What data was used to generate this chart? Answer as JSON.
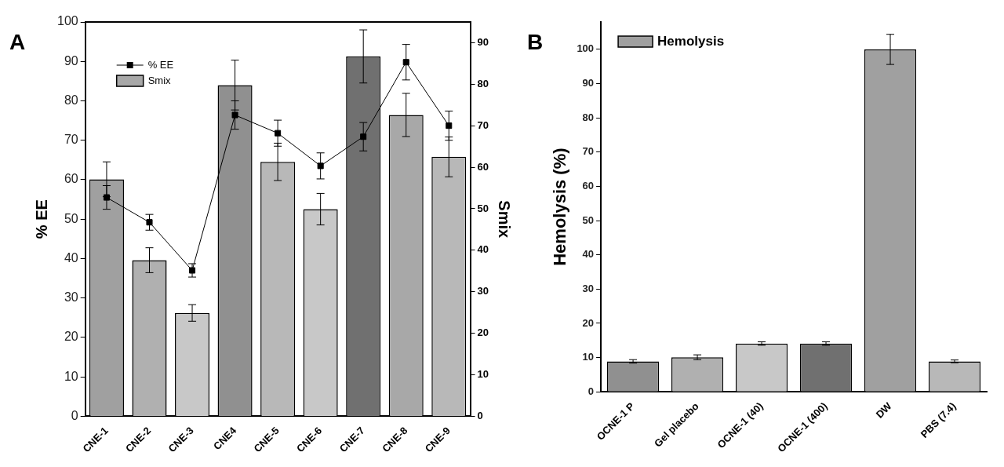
{
  "chart_data": [
    {
      "type": "bar",
      "annotations": [
        "A"
      ],
      "categories": [
        "CNE-1",
        "CNE-2",
        "CNE-3",
        "CNE4",
        "CNE-5",
        "CNE-6",
        "CNE-7",
        "CNE-8",
        "CNE-9"
      ],
      "ylabel": "% EE",
      "y2label": "Smix",
      "ylim": [
        0,
        100
      ],
      "yticks": [
        0,
        10,
        20,
        30,
        40,
        50,
        60,
        70,
        80,
        90,
        100
      ],
      "y2lim": [
        0,
        95
      ],
      "y2ticks": [
        0,
        10,
        20,
        30,
        40,
        50,
        60,
        70,
        80,
        90
      ],
      "legend": "top left",
      "series": [
        {
          "name": "Smix",
          "axis": "y2",
          "color": "#a8a8a8",
          "colors": [
            "#a0a0a0",
            "#b0b0b0",
            "#c8c8c8",
            "#909090",
            "#b8b8b8",
            "#c8c8c8",
            "#707070",
            "#a8a8a8",
            "#b8b8b8"
          ],
          "values": [
            57.1,
            37.6,
            24.9,
            79.8,
            61.3,
            49.9,
            86.7,
            72.6,
            62.5
          ],
          "errors": [
            4.2,
            3,
            2,
            6,
            4.5,
            3.8,
            6.4,
            5.2,
            4.8
          ]
        },
        {
          "name": "% EE",
          "type": "line",
          "color": "#000000",
          "marker": "square",
          "values": [
            55.5,
            49.2,
            37,
            76.4,
            71.8,
            63.5,
            70.9,
            89.8,
            73.7
          ],
          "errors": [
            3,
            2,
            1.7,
            3.6,
            3.3,
            3.3,
            3.6,
            4.5,
            3.7
          ]
        }
      ]
    },
    {
      "type": "bar",
      "annotations": [
        "B"
      ],
      "categories": [
        "OCNE-1 P",
        "Gel placebo",
        "OCNE-1 (40)",
        "OCNE-1 (400)",
        "DW",
        "PBS (7.4)"
      ],
      "ylabel": "Hemolysis (%)",
      "ylim": [
        0,
        108
      ],
      "yticks": [
        0,
        10,
        20,
        30,
        40,
        50,
        60,
        70,
        80,
        90,
        100
      ],
      "legend": "top left",
      "series": [
        {
          "name": "Hemolysis",
          "color": "#a0a0a0",
          "colors": [
            "#909090",
            "#b0b0b0",
            "#c8c8c8",
            "#707070",
            "#a0a0a0",
            "#b8b8b8"
          ],
          "values": [
            8.9,
            10.1,
            14.1,
            14.1,
            100,
            8.9
          ],
          "errors": [
            0.5,
            0.7,
            0.5,
            0.5,
            4.4,
            0.4
          ]
        }
      ]
    }
  ]
}
